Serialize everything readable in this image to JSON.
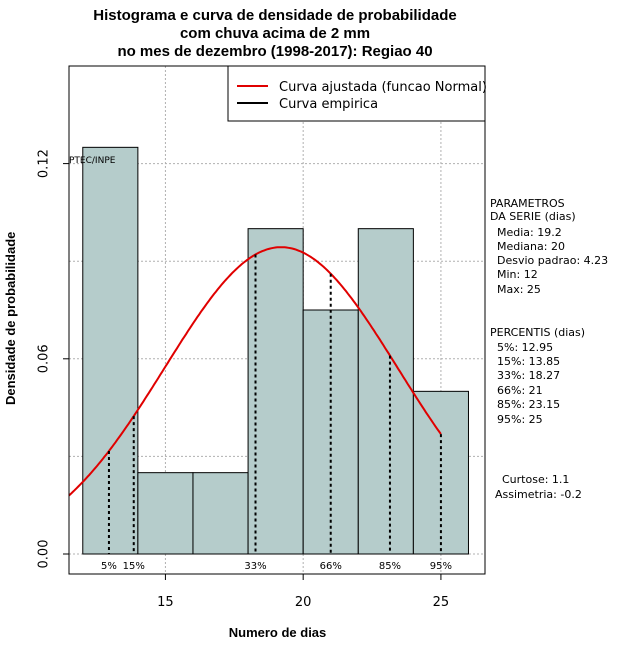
{
  "title_lines": [
    "Histograma e curva de densidade de probabilidade",
    "com chuva acima de 2 mm",
    "no mes de dezembro (1998-2017): Regiao 40"
  ],
  "xlabel": "Numero de dias",
  "ylabel": "Densidade de probabilidade",
  "watermark": "PTEC/INPE",
  "legend": {
    "fitted": "Curva ajustada (funcao Normal)",
    "empirical": "Curva empirica"
  },
  "params": {
    "header": [
      "PARAMETROS",
      "DA SERIE (dias)"
    ],
    "lines": [
      "  Media: 19.2",
      "  Mediana: 20",
      "  Desvio padrao: 4.23",
      "  Min: 12",
      "  Max: 25"
    ]
  },
  "percentiles": {
    "header": "PERCENTIS (dias)",
    "lines": [
      "  5%: 12.95",
      "  15%: 13.85",
      "  33%: 18.27",
      "  66%: 21",
      "  85%: 23.15",
      "  95%: 25"
    ]
  },
  "shape": {
    "kurtosis": "  Curtose: 1.1",
    "skewness": "Assimetria: -0.2"
  },
  "colors": {
    "bar_fill": "#b5cccb",
    "fitted_curve": "#e00000",
    "grid": "#b0b0b0"
  },
  "chart_data": {
    "type": "bar",
    "bins": [
      [
        12,
        14
      ],
      [
        14,
        16
      ],
      [
        16,
        18
      ],
      [
        18,
        20
      ],
      [
        20,
        22
      ],
      [
        22,
        24
      ],
      [
        24,
        26
      ]
    ],
    "values": [
      0.125,
      0.025,
      0.025,
      0.1,
      0.075,
      0.1,
      0.05
    ],
    "xlim": [
      11.5,
      26.6
    ],
    "ylim": [
      0,
      0.15
    ],
    "xticks": [
      15,
      20,
      25
    ],
    "yticks": [
      0.0,
      0.06,
      0.12
    ],
    "ytick_labels": [
      "0.00",
      "0.06",
      "0.12"
    ],
    "normal_fit": {
      "mean": 19.2,
      "sd": 4.23,
      "xrange": [
        11.5,
        25
      ]
    },
    "percentile_markers": [
      {
        "label": "5%",
        "x": 12.95
      },
      {
        "label": "15%",
        "x": 13.85
      },
      {
        "label": "33%",
        "x": 18.27
      },
      {
        "label": "66%",
        "x": 21
      },
      {
        "label": "85%",
        "x": 23.15
      },
      {
        "label": "95%",
        "x": 25
      }
    ],
    "grid": true,
    "legend_position": "top-right"
  }
}
